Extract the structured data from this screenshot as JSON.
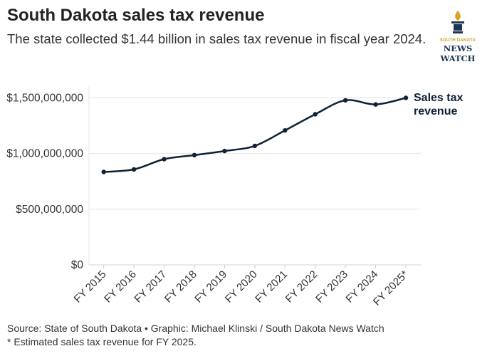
{
  "header": {
    "title": "South Dakota sales tax revenue",
    "subtitle": "The state collected $1.44 billion in sales tax revenue in fiscal year 2024."
  },
  "logo": {
    "line1": "SOUTH DAKOTA",
    "line2": "NEWS",
    "line3": "WATCH",
    "colors": {
      "flame": "#d9a520",
      "navy": "#1c3550"
    }
  },
  "chart_data": {
    "type": "line",
    "categories": [
      "FY 2015",
      "FY 2016",
      "FY 2017",
      "FY 2018",
      "FY 2019",
      "FY 2020",
      "FY 2021",
      "FY 2022",
      "FY 2023",
      "FY 2024",
      "FY 2025*"
    ],
    "series": [
      {
        "name": "Sales tax revenue",
        "values": [
          834000000,
          857000000,
          949000000,
          985000000,
          1022000000,
          1068000000,
          1207000000,
          1352000000,
          1477000000,
          1440000000,
          1499000000
        ],
        "color": "#0f2236"
      }
    ],
    "ylim": [
      0,
      1500000000
    ],
    "yticks": [
      0,
      500000000,
      1000000000,
      1500000000
    ],
    "ytick_labels": [
      "$0",
      "$500,000,000",
      "$1,000,000,000",
      "$1,500,000,000"
    ],
    "series_label_lines": [
      "Sales tax",
      "revenue"
    ],
    "grid": true,
    "xlabel": "",
    "ylabel": ""
  },
  "footer": {
    "source": "Source: State of South Dakota • Graphic: Michael Klinski / South Dakota News Watch",
    "note": "* Estimated sales tax revenue for FY 2025."
  }
}
